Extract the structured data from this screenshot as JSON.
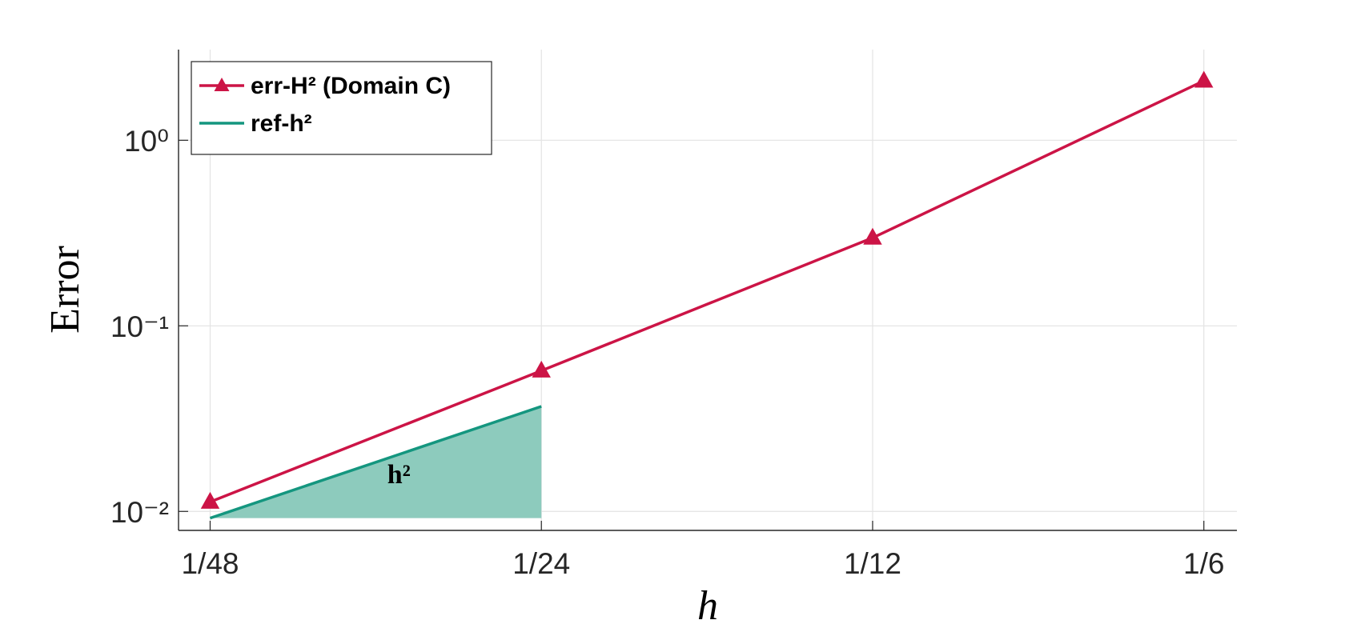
{
  "chart_data": {
    "type": "line",
    "xlabel": "h",
    "ylabel": "Error",
    "annotation": "h²",
    "x": [
      0.020833333333333332,
      0.041666666666666664,
      0.08333333333333333,
      0.16666666666666666
    ],
    "series": [
      {
        "name": "err-H² (Domain C)",
        "color": "#cc1446",
        "marker": "triangle",
        "values": [
          0.01125,
          0.0573,
          0.298,
          2.09
        ]
      },
      {
        "name": "ref-h²",
        "color": "#14967f",
        "fill": "#8dcbbd",
        "values": [
          0.0092,
          0.0368,
          null,
          null
        ]
      }
    ],
    "xscale": "log",
    "yscale": "log",
    "xlim": [
      0.0195,
      0.1786
    ],
    "ylim": [
      0.0079,
      3.08
    ],
    "xticks": [
      {
        "value": 0.020833333333333332,
        "label": "1/48"
      },
      {
        "value": 0.041666666666666664,
        "label": "1/24"
      },
      {
        "value": 0.08333333333333333,
        "label": "1/12"
      },
      {
        "value": 0.16666666666666666,
        "label": "1/6"
      }
    ],
    "yticks": [
      {
        "value": 0.01,
        "label": "10⁻²"
      },
      {
        "value": 0.1,
        "label": "10⁻¹"
      },
      {
        "value": 1,
        "label": "10⁰"
      }
    ],
    "grid": true,
    "legend": "upper left"
  }
}
